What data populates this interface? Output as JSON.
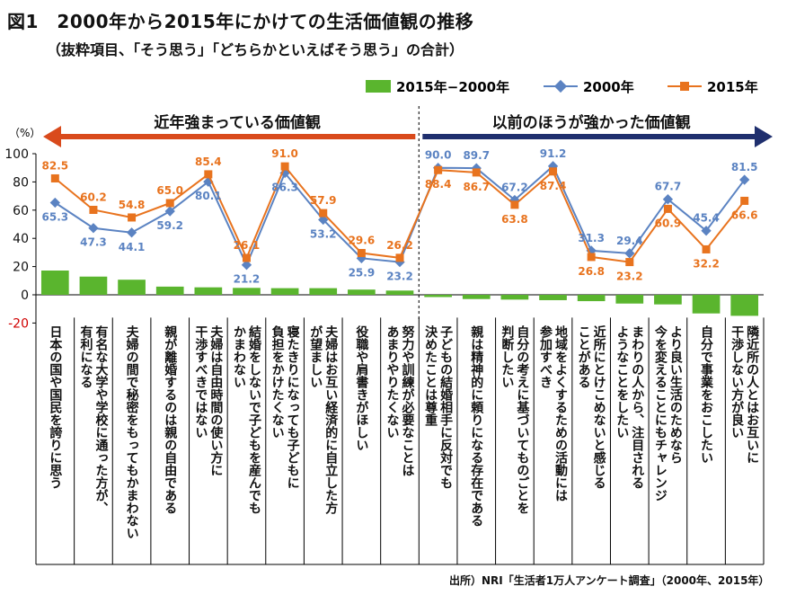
{
  "figure": {
    "title": "図1　2000年から2015年にかけての生活価値観の推移",
    "subtitle": "（抜粋項目、「そう思う」「どちらかといえばそう思う」の合計）",
    "source": "出所）NRI「生活者1万人アンケート調査」（2000年、2015年）"
  },
  "chart_data": {
    "type": "line",
    "unit_label": "（%）",
    "ylim": [
      -20,
      100
    ],
    "yticks": [
      -20,
      0,
      20,
      40,
      60,
      80,
      100
    ],
    "grid": false,
    "legend_position": "top",
    "categories": [
      "日本の国や国民を誇りに思う",
      "有名な大学や学校に通った方が、有利になる",
      "夫婦の間で秘密をもってもかまわない",
      "親が離婚するのは親の自由である",
      "夫婦は自由時間の使い方に干渉すべきではない",
      "結婚をしないで子どもを産んでもかまわない",
      "寝たきりになっても子どもに負担をかけたくない",
      "夫婦はお互い経済的に自立した方が望ましい",
      "役職や肩書きがほしい",
      "努力や訓練が必要なことはあまりやりたくない",
      "子どもの結婚相手に反対でも決めたことは尊重",
      "親は精神的に頼りになる存在である",
      "自分の考えに基づいてものごとを判断したい",
      "地域をよくするための活動には参加すべき",
      "近所にとけこめないと感じることがある",
      "まわりの人から、注目されるようなことをしたい",
      "より良い生活のためなら今を変えることにもチャレンジ",
      "自分で事業をおこしたい",
      "隣近所の人とはお互いに干渉しない方が良い"
    ],
    "category_lines": [
      [
        "日本の国や国民を誇りに思う"
      ],
      [
        "有名な大学や学校に通った方が、",
        "有利になる"
      ],
      [
        "夫婦の間で秘密をもってもかまわない"
      ],
      [
        "親が離婚するのは親の自由である"
      ],
      [
        "夫婦は自由時間の使い方に",
        "干渉すべきではない"
      ],
      [
        "結婚をしないで子どもを産んでも",
        "かまわない"
      ],
      [
        "寝たきりになっても子どもに",
        "負担をかけたくない"
      ],
      [
        "夫婦はお互い経済的に自立した方",
        "が望ましい"
      ],
      [
        "役職や肩書きがほしい"
      ],
      [
        "努力や訓練が必要なことは",
        "あまりやりたくない"
      ],
      [
        "子どもの結婚相手に反対でも",
        "決めたことは尊重"
      ],
      [
        "親は精神的に頼りになる存在である"
      ],
      [
        "自分の考えに基づいてものごとを",
        "判断したい"
      ],
      [
        "地域をよくするための活動には",
        "参加すべき"
      ],
      [
        "近所にとけこめないと感じる",
        "ことがある"
      ],
      [
        "まわりの人から、注目される",
        "ようなことをしたい"
      ],
      [
        "より良い生活のためなら",
        "今を変えることにもチャレンジ"
      ],
      [
        "自分で事業をおこしたい"
      ],
      [
        "隣近所の人とはお互いに",
        "干渉しない方が良い"
      ]
    ],
    "series": [
      {
        "name": "2015年−2000年",
        "type": "bar",
        "color": "#5ab52e",
        "values": [
          17.2,
          12.9,
          10.7,
          5.8,
          5.3,
          4.9,
          4.7,
          4.7,
          3.7,
          3.0,
          -1.6,
          -3.0,
          -3.4,
          -3.8,
          -4.5,
          -6.2,
          -6.8,
          -13.2,
          -14.9
        ]
      },
      {
        "name": "2000年",
        "type": "line",
        "color": "#5b83c2",
        "marker": "diamond",
        "values": [
          65.3,
          47.3,
          44.1,
          59.2,
          80.1,
          21.2,
          86.3,
          53.2,
          25.9,
          23.2,
          90.0,
          89.7,
          67.2,
          91.2,
          31.3,
          29.4,
          67.7,
          45.4,
          81.5
        ]
      },
      {
        "name": "2015年",
        "type": "line",
        "color": "#e8731e",
        "marker": "square",
        "values": [
          82.5,
          60.2,
          54.8,
          65.0,
          85.4,
          26.1,
          91.0,
          57.9,
          29.6,
          26.2,
          88.4,
          86.7,
          63.8,
          87.4,
          26.8,
          23.2,
          60.9,
          32.2,
          66.6
        ]
      }
    ],
    "annotations": {
      "left_arrow_label": "近年強まっている価値観",
      "left_arrow_color": "#d94a1c",
      "right_arrow_label": "以前のほうが強かった価値観",
      "right_arrow_color": "#1f2f6e",
      "divider_after_index": 9
    },
    "colors": {
      "negative_tick": "#d00000"
    }
  }
}
